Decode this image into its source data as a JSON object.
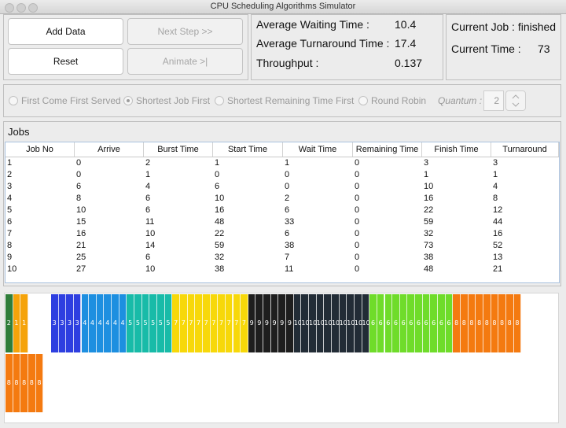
{
  "window": {
    "title": "CPU Scheduling Algorithms Simulator"
  },
  "buttons": {
    "add_data": "Add Data",
    "next_step": "Next Step >>",
    "reset": "Reset",
    "animate": "Animate >|"
  },
  "stats": {
    "avg_wait_label": "Average Waiting Time :",
    "avg_wait": "10.4",
    "avg_turn_label": "Average Turnaround Time :",
    "avg_turn": "17.4",
    "throughput_label": "Throughput :",
    "throughput": "0.137"
  },
  "current": {
    "job_label": "Current Job : finished",
    "time_label": "Current Time :",
    "time": "73"
  },
  "algorithms": {
    "options": [
      "First Come First Served",
      "Shortest Job First",
      "Shortest Remaining Time First",
      "Round Robin"
    ],
    "selected": "Shortest Job First",
    "quantum_label": "Quantum :",
    "quantum": "2"
  },
  "jobs": {
    "title": "Jobs",
    "columns": [
      "Job No",
      "Arrive",
      "Burst Time",
      "Start Time",
      "Wait Time",
      "Remaining Time",
      "Finish Time",
      "Turnaround"
    ],
    "rows": [
      [
        "1",
        "0",
        "2",
        "1",
        "1",
        "0",
        "3",
        "3"
      ],
      [
        "2",
        "0",
        "1",
        "0",
        "0",
        "0",
        "1",
        "1"
      ],
      [
        "3",
        "6",
        "4",
        "6",
        "0",
        "0",
        "10",
        "4"
      ],
      [
        "4",
        "8",
        "6",
        "10",
        "2",
        "0",
        "16",
        "8"
      ],
      [
        "5",
        "10",
        "6",
        "16",
        "6",
        "0",
        "22",
        "12"
      ],
      [
        "6",
        "15",
        "11",
        "48",
        "33",
        "0",
        "59",
        "44"
      ],
      [
        "7",
        "16",
        "10",
        "22",
        "6",
        "0",
        "32",
        "16"
      ],
      [
        "8",
        "21",
        "14",
        "59",
        "38",
        "0",
        "73",
        "52"
      ],
      [
        "9",
        "25",
        "6",
        "32",
        "7",
        "0",
        "38",
        "13"
      ],
      [
        "10",
        "27",
        "10",
        "38",
        "11",
        "0",
        "48",
        "21"
      ]
    ]
  },
  "gantt": {
    "colors": {
      "1": "#f5a30a",
      "2": "#2f7d3a",
      "3": "#2e3fe0",
      "4": "#1d8fe0",
      "5": "#18bba8",
      "6": "#6fdc2a",
      "7": "#f7d80a",
      "8": "#f47a10",
      "9": "#1e1e1e",
      "10": "#222c36",
      "idle": "#ffffff"
    },
    "blocks": [
      "2",
      "1",
      "1",
      "idle",
      "idle",
      "idle",
      "3",
      "3",
      "3",
      "3",
      "4",
      "4",
      "4",
      "4",
      "4",
      "4",
      "5",
      "5",
      "5",
      "5",
      "5",
      "5",
      "7",
      "7",
      "7",
      "7",
      "7",
      "7",
      "7",
      "7",
      "7",
      "7",
      "9",
      "9",
      "9",
      "9",
      "9",
      "9",
      "10",
      "10",
      "10",
      "10",
      "10",
      "10",
      "10",
      "10",
      "10",
      "10",
      "6",
      "6",
      "6",
      "6",
      "6",
      "6",
      "6",
      "6",
      "6",
      "6",
      "6",
      "8",
      "8",
      "8",
      "8",
      "8",
      "8",
      "8",
      "8",
      "8",
      "8",
      "8",
      "8",
      "8",
      "8"
    ]
  }
}
